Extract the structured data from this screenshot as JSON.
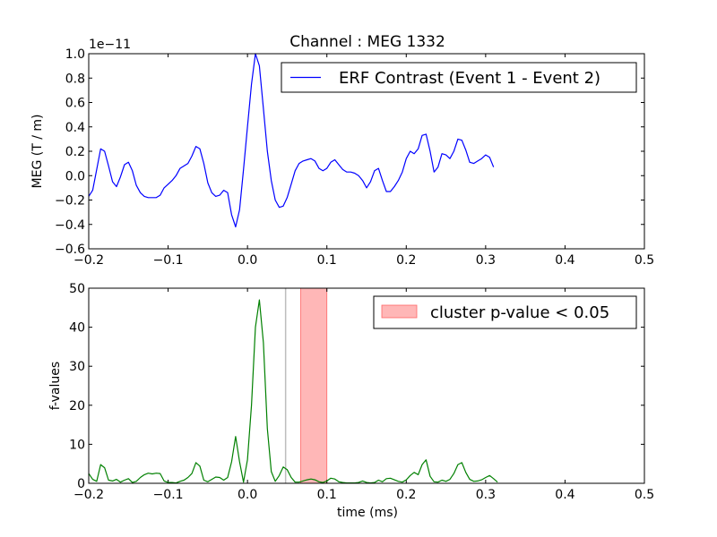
{
  "chart_data": [
    {
      "type": "line",
      "title": "Channel : MEG 1332",
      "xlabel": "",
      "ylabel": "MEG (T / m)",
      "offset_label": "1e−11",
      "xlim": [
        -0.2,
        0.5
      ],
      "ylim": [
        -0.6,
        1.0
      ],
      "xticks": [
        -0.2,
        -0.1,
        0.0,
        0.1,
        0.2,
        0.3,
        0.4,
        0.5
      ],
      "xtick_labels": [
        "−0.2",
        "−0.1",
        "0.0",
        "0.1",
        "0.2",
        "0.3",
        "0.4",
        "0.5"
      ],
      "yticks": [
        -0.6,
        -0.4,
        -0.2,
        0.0,
        0.2,
        0.4,
        0.6,
        0.8,
        1.0
      ],
      "ytick_labels": [
        "−0.6",
        "−0.4",
        "−0.2",
        "0.0",
        "0.2",
        "0.4",
        "0.6",
        "0.8",
        "1.0"
      ],
      "grid": false,
      "legend_position": "top-right",
      "colors": {
        "line": "#0000ff"
      },
      "series": [
        {
          "name": "ERF Contrast (Event 1 - Event 2)",
          "points": [
            [
              -0.2,
              -0.17
            ],
            [
              -0.195,
              -0.12
            ],
            [
              -0.19,
              0.05
            ],
            [
              -0.185,
              0.22
            ],
            [
              -0.18,
              0.2
            ],
            [
              -0.175,
              0.08
            ],
            [
              -0.17,
              -0.05
            ],
            [
              -0.165,
              -0.09
            ],
            [
              -0.16,
              -0.01
            ],
            [
              -0.155,
              0.09
            ],
            [
              -0.15,
              0.11
            ],
            [
              -0.145,
              0.04
            ],
            [
              -0.14,
              -0.08
            ],
            [
              -0.135,
              -0.14
            ],
            [
              -0.13,
              -0.17
            ],
            [
              -0.125,
              -0.18
            ],
            [
              -0.12,
              -0.18
            ],
            [
              -0.115,
              -0.18
            ],
            [
              -0.11,
              -0.16
            ],
            [
              -0.105,
              -0.1
            ],
            [
              -0.1,
              -0.07
            ],
            [
              -0.095,
              -0.04
            ],
            [
              -0.09,
              0.0
            ],
            [
              -0.085,
              0.06
            ],
            [
              -0.08,
              0.08
            ],
            [
              -0.075,
              0.1
            ],
            [
              -0.07,
              0.16
            ],
            [
              -0.065,
              0.24
            ],
            [
              -0.06,
              0.22
            ],
            [
              -0.055,
              0.1
            ],
            [
              -0.05,
              -0.06
            ],
            [
              -0.045,
              -0.14
            ],
            [
              -0.04,
              -0.17
            ],
            [
              -0.035,
              -0.16
            ],
            [
              -0.03,
              -0.12
            ],
            [
              -0.025,
              -0.14
            ],
            [
              -0.02,
              -0.32
            ],
            [
              -0.015,
              -0.42
            ],
            [
              -0.01,
              -0.28
            ],
            [
              -0.005,
              0.05
            ],
            [
              0.0,
              0.4
            ],
            [
              0.005,
              0.75
            ],
            [
              0.01,
              1.0
            ],
            [
              0.015,
              0.9
            ],
            [
              0.02,
              0.55
            ],
            [
              0.025,
              0.2
            ],
            [
              0.03,
              -0.04
            ],
            [
              0.035,
              -0.2
            ],
            [
              0.04,
              -0.26
            ],
            [
              0.045,
              -0.25
            ],
            [
              0.05,
              -0.18
            ],
            [
              0.055,
              -0.07
            ],
            [
              0.06,
              0.04
            ],
            [
              0.065,
              0.1
            ],
            [
              0.07,
              0.12
            ],
            [
              0.075,
              0.13
            ],
            [
              0.08,
              0.14
            ],
            [
              0.085,
              0.12
            ],
            [
              0.09,
              0.06
            ],
            [
              0.095,
              0.04
            ],
            [
              0.1,
              0.06
            ],
            [
              0.105,
              0.11
            ],
            [
              0.11,
              0.13
            ],
            [
              0.115,
              0.09
            ],
            [
              0.12,
              0.05
            ],
            [
              0.125,
              0.03
            ],
            [
              0.13,
              0.03
            ],
            [
              0.135,
              0.02
            ],
            [
              0.14,
              0.0
            ],
            [
              0.145,
              -0.04
            ],
            [
              0.15,
              -0.1
            ],
            [
              0.155,
              -0.05
            ],
            [
              0.16,
              0.04
            ],
            [
              0.165,
              0.06
            ],
            [
              0.17,
              -0.04
            ],
            [
              0.175,
              -0.13
            ],
            [
              0.18,
              -0.13
            ],
            [
              0.185,
              -0.09
            ],
            [
              0.19,
              -0.04
            ],
            [
              0.195,
              0.03
            ],
            [
              0.2,
              0.14
            ],
            [
              0.205,
              0.2
            ],
            [
              0.21,
              0.18
            ],
            [
              0.215,
              0.22
            ],
            [
              0.22,
              0.33
            ],
            [
              0.225,
              0.34
            ],
            [
              0.23,
              0.2
            ],
            [
              0.235,
              0.03
            ],
            [
              0.24,
              0.07
            ],
            [
              0.245,
              0.18
            ],
            [
              0.25,
              0.17
            ],
            [
              0.255,
              0.14
            ],
            [
              0.26,
              0.2
            ],
            [
              0.265,
              0.3
            ],
            [
              0.27,
              0.29
            ],
            [
              0.275,
              0.21
            ],
            [
              0.28,
              0.11
            ],
            [
              0.285,
              0.1
            ],
            [
              0.29,
              0.12
            ],
            [
              0.295,
              0.14
            ],
            [
              0.3,
              0.17
            ],
            [
              0.305,
              0.15
            ],
            [
              0.31,
              0.07
            ]
          ]
        }
      ]
    },
    {
      "type": "line",
      "title": "",
      "xlabel": "time (ms)",
      "ylabel": "f-values",
      "xlim": [
        -0.2,
        0.5
      ],
      "ylim": [
        0,
        50
      ],
      "xticks": [
        -0.2,
        -0.1,
        0.0,
        0.1,
        0.2,
        0.3,
        0.4,
        0.5
      ],
      "xtick_labels": [
        "−0.2",
        "−0.1",
        "0.0",
        "0.1",
        "0.2",
        "0.3",
        "0.4",
        "0.5"
      ],
      "yticks": [
        0,
        10,
        20,
        30,
        40,
        50
      ],
      "ytick_labels": [
        "0",
        "10",
        "20",
        "30",
        "40",
        "50"
      ],
      "grid": false,
      "legend_position": "top-right",
      "colors": {
        "line": "#008000",
        "cluster_fill": "#ff9999",
        "cluster_edge": "#ff6666",
        "vline": "#bdbdbd"
      },
      "vertical_line_x": 0.048,
      "cluster_span": {
        "label": "cluster p-value < 0.05",
        "x_start": 0.067,
        "x_end": 0.1
      },
      "series": [
        {
          "name": "",
          "points": [
            [
              -0.2,
              2.5
            ],
            [
              -0.195,
              1.0
            ],
            [
              -0.19,
              0.5
            ],
            [
              -0.185,
              4.8
            ],
            [
              -0.18,
              4.0
            ],
            [
              -0.175,
              0.8
            ],
            [
              -0.17,
              0.6
            ],
            [
              -0.165,
              1.0
            ],
            [
              -0.16,
              0.3
            ],
            [
              -0.155,
              0.8
            ],
            [
              -0.15,
              1.2
            ],
            [
              -0.145,
              0.2
            ],
            [
              -0.14,
              0.5
            ],
            [
              -0.135,
              1.5
            ],
            [
              -0.13,
              2.2
            ],
            [
              -0.125,
              2.6
            ],
            [
              -0.12,
              2.4
            ],
            [
              -0.115,
              2.6
            ],
            [
              -0.11,
              2.5
            ],
            [
              -0.105,
              0.6
            ],
            [
              -0.1,
              0.2
            ],
            [
              -0.095,
              0.2
            ],
            [
              -0.09,
              0.1
            ],
            [
              -0.085,
              0.5
            ],
            [
              -0.08,
              0.8
            ],
            [
              -0.075,
              1.5
            ],
            [
              -0.07,
              2.5
            ],
            [
              -0.065,
              5.3
            ],
            [
              -0.06,
              4.4
            ],
            [
              -0.055,
              0.8
            ],
            [
              -0.05,
              0.4
            ],
            [
              -0.045,
              1.0
            ],
            [
              -0.04,
              1.6
            ],
            [
              -0.035,
              1.5
            ],
            [
              -0.03,
              0.8
            ],
            [
              -0.025,
              1.5
            ],
            [
              -0.02,
              5.5
            ],
            [
              -0.015,
              12.0
            ],
            [
              -0.01,
              5.5
            ],
            [
              -0.005,
              0.3
            ],
            [
              0.0,
              6.0
            ],
            [
              0.005,
              20.0
            ],
            [
              0.01,
              40.0
            ],
            [
              0.015,
              47.0
            ],
            [
              0.02,
              36.0
            ],
            [
              0.025,
              14.0
            ],
            [
              0.03,
              3.0
            ],
            [
              0.035,
              0.5
            ],
            [
              0.04,
              2.0
            ],
            [
              0.045,
              4.2
            ],
            [
              0.05,
              3.5
            ],
            [
              0.055,
              1.5
            ],
            [
              0.06,
              0.3
            ],
            [
              0.065,
              0.3
            ],
            [
              0.07,
              0.6
            ],
            [
              0.075,
              0.9
            ],
            [
              0.08,
              1.1
            ],
            [
              0.085,
              0.9
            ],
            [
              0.09,
              0.4
            ],
            [
              0.095,
              0.2
            ],
            [
              0.1,
              0.6
            ],
            [
              0.105,
              1.3
            ],
            [
              0.11,
              1.1
            ],
            [
              0.115,
              0.4
            ],
            [
              0.12,
              0.2
            ],
            [
              0.125,
              0.1
            ],
            [
              0.13,
              0.1
            ],
            [
              0.135,
              0.1
            ],
            [
              0.14,
              0.2
            ],
            [
              0.145,
              0.6
            ],
            [
              0.15,
              0.2
            ],
            [
              0.155,
              0.1
            ],
            [
              0.16,
              0.2
            ],
            [
              0.165,
              0.8
            ],
            [
              0.17,
              0.4
            ],
            [
              0.175,
              1.2
            ],
            [
              0.18,
              1.3
            ],
            [
              0.185,
              0.9
            ],
            [
              0.19,
              0.5
            ],
            [
              0.195,
              0.3
            ],
            [
              0.2,
              0.9
            ],
            [
              0.205,
              2.0
            ],
            [
              0.21,
              2.8
            ],
            [
              0.215,
              2.2
            ],
            [
              0.22,
              4.8
            ],
            [
              0.225,
              6.0
            ],
            [
              0.23,
              1.8
            ],
            [
              0.235,
              0.4
            ],
            [
              0.24,
              0.3
            ],
            [
              0.245,
              0.8
            ],
            [
              0.25,
              0.5
            ],
            [
              0.255,
              1.0
            ],
            [
              0.26,
              2.5
            ],
            [
              0.265,
              4.8
            ],
            [
              0.27,
              5.3
            ],
            [
              0.275,
              2.8
            ],
            [
              0.28,
              1.0
            ],
            [
              0.285,
              0.5
            ],
            [
              0.29,
              0.6
            ],
            [
              0.295,
              0.9
            ],
            [
              0.3,
              1.5
            ],
            [
              0.305,
              2.0
            ],
            [
              0.31,
              1.2
            ],
            [
              0.315,
              0.3
            ]
          ]
        }
      ]
    }
  ]
}
